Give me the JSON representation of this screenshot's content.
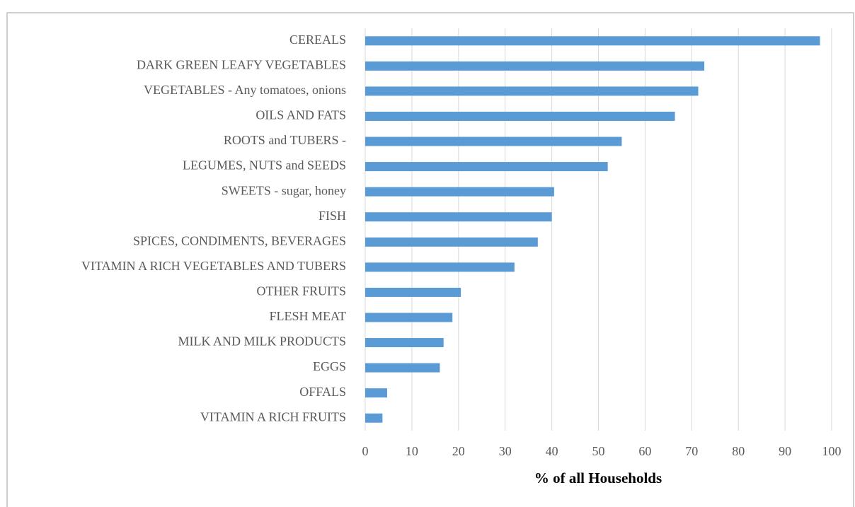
{
  "chart_data": {
    "type": "bar",
    "orientation": "horizontal",
    "xlabel": "% of all Households",
    "categories": [
      "CEREALS",
      "DARK GREEN LEAFY VEGETABLES",
      "VEGETABLES - Any tomatoes, onions",
      "OILS AND FATS",
      "ROOTS and TUBERS -",
      "LEGUMES, NUTS and SEEDS",
      "SWEETS - sugar, honey",
      "FISH",
      "SPICES, CONDIMENTS, BEVERAGES",
      "VITAMIN A RICH VEGETABLES AND TUBERS",
      "OTHER FRUITS",
      "FLESH MEAT",
      "MILK AND MILK PRODUCTS",
      "EGGS",
      "OFFALS",
      "VITAMIN A RICH FRUITS"
    ],
    "values": [
      97.5,
      72.7,
      71.4,
      66.4,
      55,
      52,
      40.5,
      40,
      37,
      32,
      20.5,
      18.7,
      16.8,
      16,
      4.7,
      3.7
    ],
    "color": "#5b9bd5",
    "xlim": [
      0,
      100
    ],
    "xticks": [
      0,
      10,
      20,
      30,
      40,
      50,
      60,
      70,
      80,
      90,
      100
    ],
    "grid": true
  }
}
